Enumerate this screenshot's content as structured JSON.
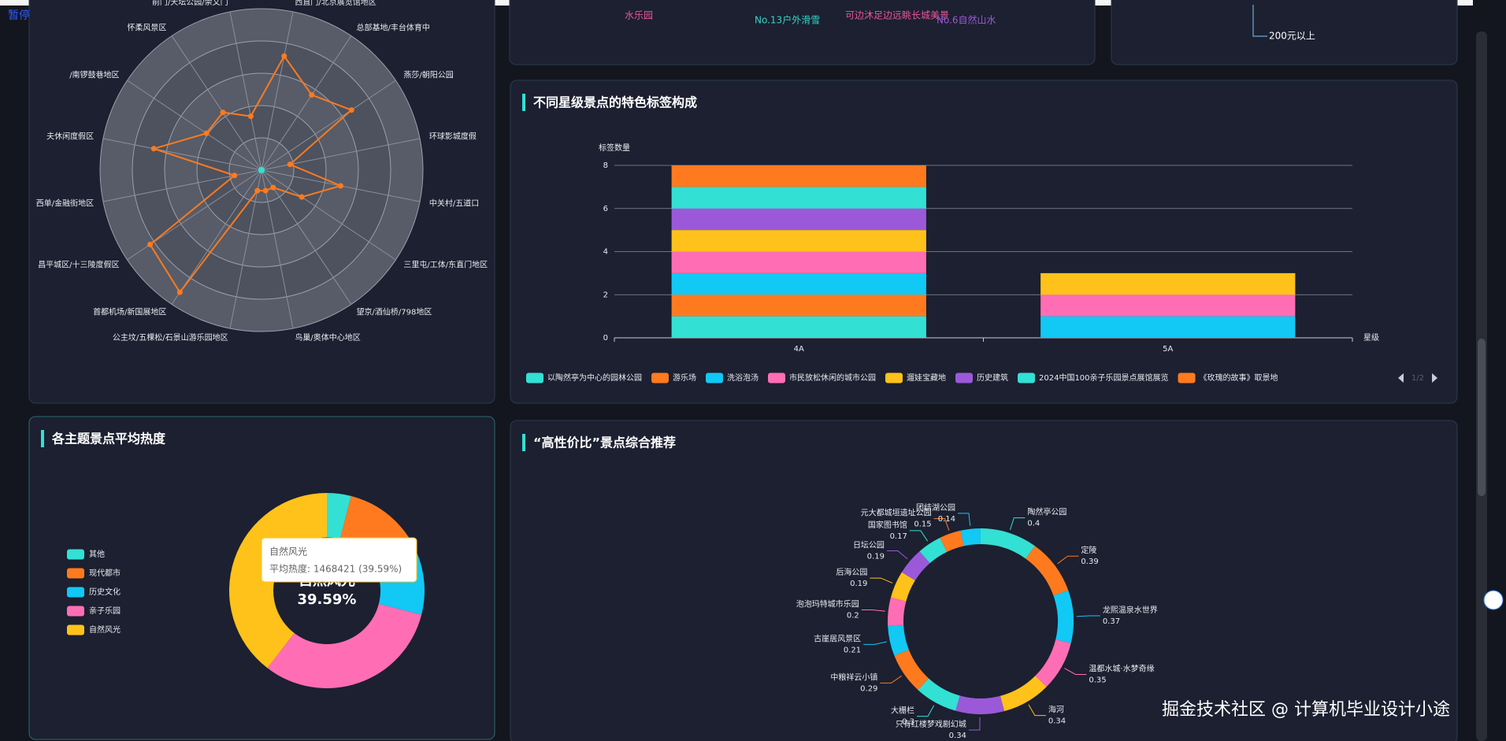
{
  "pause_label": "暂停",
  "watermark": "掘金技术社区 @ 计算机毕业设计小途",
  "word_cloud": [
    {
      "text": "水乐园",
      "color": "#e8559c"
    },
    {
      "text": "No.13户外滑雪",
      "color": "#33d6c8"
    },
    {
      "text": "可边沐足边远眺长城美景",
      "color": "#e8559c"
    },
    {
      "text": "No.6自然山水",
      "color": "#9b59d9"
    }
  ],
  "top_right_label": "200元以上",
  "chart_data": [
    {
      "type": "radar",
      "indicators": [
        "西直门/北京展览馆地区",
        "总部基地/丰台体育中",
        "燕莎/朝阳公园",
        "环球影城度假",
        "中关村/五道口",
        "三里屯/工体/东直门地区",
        "望京/酒仙桥/798地区",
        "鸟巢/奥体中心地区",
        "公主坟/五棵松/石景山游乐园地区",
        "首都机场/新国展地区",
        "昌平城区/十三陵度假区",
        "西单/金融街地区",
        "夫休闲度假区",
        "/南锣鼓巷地区",
        "怀柔风景区",
        "前门/天坛公园/崇文门"
      ],
      "series": [
        {
          "color": "#ff7a1f",
          "values": [
            72,
            56,
            67,
            18,
            50,
            30,
            13,
            13,
            13,
            91,
            83,
            17,
            68,
            41,
            43,
            34
          ]
        }
      ],
      "rlim": [
        0,
        100
      ]
    },
    {
      "type": "bar",
      "title": "不同星级景点的特色标签构成",
      "y_label": "标签数量",
      "x_label": "星级",
      "categories": [
        "4A",
        "5A"
      ],
      "stacked": true,
      "grid": true,
      "ylim": [
        0,
        8
      ],
      "yticks": [
        0,
        2,
        4,
        6,
        8
      ],
      "legend_page": "1/2",
      "series": [
        {
          "name": "以陶然亭为中心的园林公园",
          "color": "#33e0d4",
          "values": [
            1,
            0
          ]
        },
        {
          "name": "游乐场",
          "color": "#ff7a1f",
          "values": [
            1,
            0
          ]
        },
        {
          "name": "洗浴泡汤",
          "color": "#12c8f5",
          "values": [
            1,
            1
          ]
        },
        {
          "name": "市民放松休闲的城市公园",
          "color": "#ff6eb4",
          "values": [
            1,
            1
          ]
        },
        {
          "name": "遛娃宝藏地",
          "color": "#ffc21a",
          "values": [
            1,
            1
          ]
        },
        {
          "name": "历史建筑",
          "color": "#9b59d9",
          "values": [
            1,
            0
          ]
        },
        {
          "name": "2024中国100亲子乐园景点展馆展览",
          "color": "#33e0d4",
          "values": [
            1,
            0
          ]
        },
        {
          "name": "《玫瑰的故事》取景地",
          "color": "#ff7a1f",
          "values": [
            1,
            0
          ]
        }
      ]
    },
    {
      "type": "pie",
      "title": "各主题景点平均热度",
      "legend": "left",
      "categories": [
        "其他",
        "现代都市",
        "历史文化",
        "亲子乐园",
        "自然风光"
      ],
      "values": [
        148000,
        538000,
        389000,
        1165650,
        1468421
      ],
      "colors": [
        "#33e0d4",
        "#ff7a1f",
        "#12c8f5",
        "#ff6eb4",
        "#ffc21a"
      ],
      "center_label": {
        "name": "自然风光",
        "percent": "39.59%"
      },
      "tooltip": {
        "name": "自然风光",
        "text": "平均热度: 1468421 (39.59%)"
      }
    },
    {
      "type": "pie",
      "title": "“高性价比”景点综合推荐",
      "categories": [
        "陶然亭公园",
        "定陵",
        "龙熙温泉水世界",
        "温都水城·水梦奇缘",
        "海河",
        "只有红楼梦戏剧幻城",
        "大栅栏",
        "中粮祥云小镇",
        "古崖居风景区",
        "泡泡玛特城市乐园",
        "后海公园",
        "日坛公园",
        "国家图书馆",
        "元大都城垣遗址公园",
        "团结湖公园"
      ],
      "values": [
        0.4,
        0.39,
        0.37,
        0.35,
        0.34,
        0.34,
        0.3,
        0.29,
        0.21,
        0.2,
        0.19,
        0.19,
        0.17,
        0.15,
        0.14
      ],
      "colors": [
        "#33e0d4",
        "#ff7a1f",
        "#12c8f5",
        "#ff6eb4",
        "#ffc21a",
        "#9b59d9",
        "#33e0d4",
        "#ff7a1f",
        "#12c8f5",
        "#ff6eb4",
        "#ffc21a",
        "#9b59d9",
        "#33e0d4",
        "#ff7a1f",
        "#12c8f5"
      ]
    }
  ]
}
